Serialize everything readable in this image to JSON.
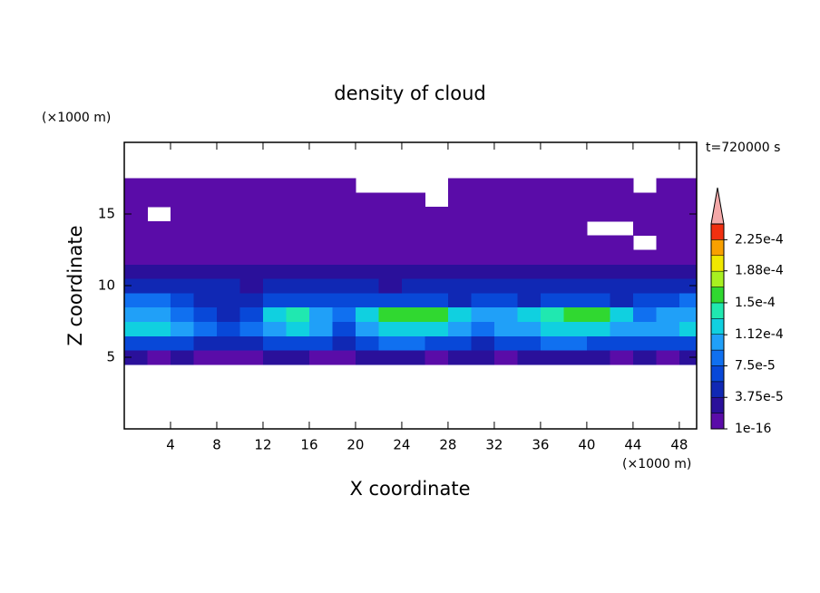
{
  "chart_data": {
    "type": "contour",
    "title": "density of cloud",
    "subtitle": "t=720000 s",
    "x_label": "X coordinate",
    "y_label": "Z coordinate",
    "x_unit": "(×1000 m)",
    "y_unit": "(×1000 m)",
    "xlim": [
      0,
      49.5
    ],
    "ylim": [
      0,
      20
    ],
    "xticks": [
      4,
      8,
      12,
      16,
      20,
      24,
      28,
      32,
      36,
      40,
      44,
      48
    ],
    "yticks": [
      5,
      10,
      15
    ],
    "x": [
      1,
      3,
      5,
      7,
      9,
      11,
      13,
      15,
      17,
      19,
      21,
      23,
      25,
      27,
      29,
      31,
      33,
      35,
      37,
      39,
      41,
      43,
      45,
      47,
      49
    ],
    "y": [
      5,
      6,
      7,
      8,
      9,
      10,
      11,
      12,
      13,
      14,
      15,
      16,
      17
    ],
    "z": [
      [
        2e-05,
        1.5e-05,
        2e-05,
        1.5e-05,
        1e-05,
        1.5e-05,
        2e-05,
        2e-05,
        1.5e-05,
        1e-05,
        2e-05,
        2e-05,
        2e-05,
        1.5e-05,
        2e-05,
        2e-05,
        1.5e-05,
        2e-05,
        2e-05,
        2e-05,
        2e-05,
        1.5e-05,
        2e-05,
        1.5e-05,
        2e-05
      ],
      [
        7e-05,
        7e-05,
        6e-05,
        5e-05,
        4e-05,
        5e-05,
        7e-05,
        7e-05,
        6e-05,
        5e-05,
        7e-05,
        8e-05,
        8e-05,
        7e-05,
        6e-05,
        5e-05,
        6e-05,
        7e-05,
        8e-05,
        8e-05,
        7e-05,
        6e-05,
        6e-05,
        7e-05,
        7e-05
      ],
      [
        0.00012,
        0.00012,
        0.00011,
        9e-05,
        6e-05,
        8e-05,
        0.00011,
        0.00012,
        0.00011,
        7e-05,
        0.00011,
        0.00012,
        0.00012,
        0.00012,
        0.00011,
        8e-05,
        0.0001,
        0.00011,
        0.00012,
        0.00012,
        0.00012,
        0.00011,
        0.0001,
        0.00011,
        0.00012
      ],
      [
        0.00011,
        0.00011,
        9e-05,
        7e-05,
        5e-05,
        6e-05,
        0.00012,
        0.00014,
        0.00011,
        8e-05,
        0.00013,
        0.00016,
        0.00016,
        0.00015,
        0.00012,
        0.0001,
        0.00011,
        0.00013,
        0.00014,
        0.00016,
        0.00015,
        0.00012,
        9e-05,
        0.0001,
        0.00011
      ],
      [
        8e-05,
        8e-05,
        6e-05,
        5e-05,
        4e-05,
        4e-05,
        6e-05,
        6e-05,
        6e-05,
        7e-05,
        6e-05,
        6e-05,
        6e-05,
        6e-05,
        5e-05,
        6e-05,
        6e-05,
        5e-05,
        6e-05,
        6e-05,
        6e-05,
        5e-05,
        6e-05,
        7e-05,
        8e-05
      ],
      [
        5e-05,
        5e-05,
        4e-05,
        4e-05,
        4e-05,
        3e-05,
        4e-05,
        4e-05,
        4e-05,
        4e-05,
        4e-05,
        3e-05,
        4e-05,
        4e-05,
        4e-05,
        4e-05,
        5e-05,
        4e-05,
        4e-05,
        4e-05,
        4e-05,
        4e-05,
        5e-05,
        5e-05,
        5e-05
      ],
      [
        2.5e-05,
        2.5e-05,
        2e-05,
        2.5e-05,
        2.5e-05,
        2e-05,
        2.5e-05,
        2.5e-05,
        2e-05,
        2.5e-05,
        2.5e-05,
        2e-05,
        2.5e-05,
        2.5e-05,
        2e-05,
        2.5e-05,
        2.5e-05,
        2e-05,
        2.5e-05,
        2.5e-05,
        2e-05,
        2.5e-05,
        2.5e-05,
        2e-05,
        2.5e-05
      ],
      [
        1.5e-05,
        1.5e-05,
        1.5e-05,
        1.5e-05,
        1.5e-05,
        1.5e-05,
        1.5e-05,
        1.5e-05,
        1.5e-05,
        1.5e-05,
        1.5e-05,
        1.5e-05,
        1.5e-05,
        1.5e-05,
        1.5e-05,
        1.5e-05,
        1.5e-05,
        1.5e-05,
        1.5e-05,
        1.5e-05,
        1.5e-05,
        1.5e-05,
        1.5e-05,
        1.5e-05,
        1.5e-05
      ],
      [
        1.2e-05,
        1.2e-05,
        1.2e-05,
        1.2e-05,
        1.2e-05,
        1.2e-05,
        1.2e-05,
        1.2e-05,
        1.2e-05,
        1.2e-05,
        1.2e-05,
        1.2e-05,
        1.2e-05,
        1.2e-05,
        1.2e-05,
        1.2e-05,
        1.2e-05,
        1.2e-05,
        1.2e-05,
        1.2e-05,
        1.2e-05,
        1.2e-05,
        null,
        1.2e-05,
        1.2e-05
      ],
      [
        1e-05,
        1e-05,
        1e-05,
        1e-05,
        1e-05,
        1e-05,
        1e-05,
        1e-05,
        1e-05,
        1e-05,
        1e-05,
        1e-05,
        1e-05,
        1e-05,
        1e-05,
        1e-05,
        1e-05,
        1e-05,
        1e-05,
        1e-05,
        null,
        null,
        1e-05,
        1e-05,
        1e-05
      ],
      [
        8e-06,
        null,
        8e-06,
        8e-06,
        8e-06,
        8e-06,
        8e-06,
        8e-06,
        8e-06,
        8e-06,
        8e-06,
        8e-06,
        8e-06,
        8e-06,
        8e-06,
        8e-06,
        8e-06,
        8e-06,
        8e-06,
        8e-06,
        8e-06,
        8e-06,
        8e-06,
        8e-06,
        8e-06
      ],
      [
        6e-06,
        6e-06,
        6e-06,
        6e-06,
        6e-06,
        6e-06,
        6e-06,
        6e-06,
        6e-06,
        6e-06,
        6e-06,
        6e-06,
        6e-06,
        null,
        6e-06,
        6e-06,
        6e-06,
        6e-06,
        6e-06,
        6e-06,
        6e-06,
        6e-06,
        6e-06,
        6e-06,
        6e-06
      ],
      [
        4e-06,
        4e-06,
        4e-06,
        4e-06,
        4e-06,
        4e-06,
        4e-06,
        4e-06,
        4e-06,
        4e-06,
        null,
        null,
        null,
        null,
        4e-06,
        4e-06,
        4e-06,
        4e-06,
        4e-06,
        4e-06,
        4e-06,
        4e-06,
        null,
        4e-06,
        4e-06
      ]
    ],
    "levels": [
      1e-16,
      1.875e-05,
      3.75e-05,
      5.625e-05,
      7.5e-05,
      9.375e-05,
      0.0001125,
      0.00013125,
      0.00015,
      0.00016875,
      0.0001875,
      0.00020625,
      0.000225,
      0.00024375
    ],
    "colors": [
      "#5a0ca8",
      "#2a109a",
      "#1028b4",
      "#0848d8",
      "#1070f0",
      "#20a0f8",
      "#10d0e0",
      "#20e8b0",
      "#30d830",
      "#a8f020",
      "#f0e800",
      "#f8a000",
      "#f03010"
    ],
    "extend_color": "#f4a8a8",
    "colorbar_ticks": [
      {
        "value": 1e-16,
        "label": "1e-16"
      },
      {
        "value": 3.75e-05,
        "label": "3.75e-5"
      },
      {
        "value": 7.5e-05,
        "label": "7.5e-5"
      },
      {
        "value": 0.000112,
        "label": "1.12e-4"
      },
      {
        "value": 0.00015,
        "label": "1.5e-4"
      },
      {
        "value": 0.000188,
        "label": "1.88e-4"
      },
      {
        "value": 0.000225,
        "label": "2.25e-4"
      }
    ]
  }
}
